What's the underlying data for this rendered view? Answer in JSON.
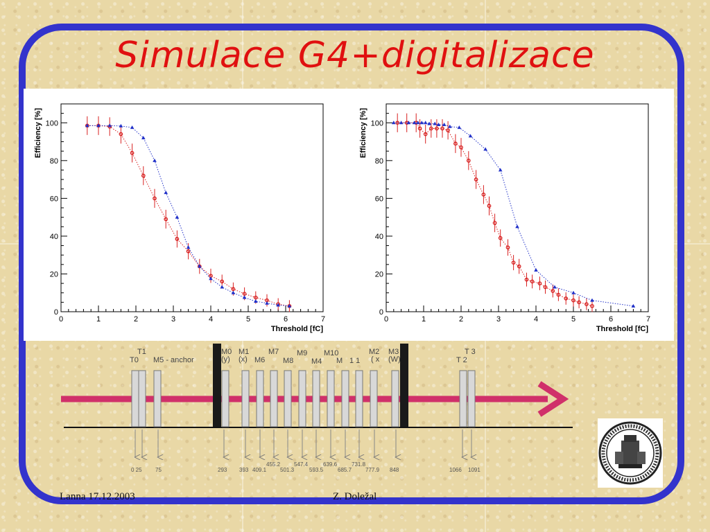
{
  "title": "Simulace G4+digitalizace",
  "footer": {
    "left": "Lanna 17.12.2003",
    "center": "Z. Doležal"
  },
  "colors": {
    "title": "#e01010",
    "frame": "#3333cc",
    "red_series": "#d82020",
    "blue_series": "#2030c8",
    "arrow": "#d0306a"
  },
  "chart_data": [
    {
      "type": "scatter",
      "xlabel": "Threshold [fC]",
      "ylabel": "Efficiency [%]",
      "xlim": [
        0,
        7
      ],
      "ylim": [
        0,
        110
      ],
      "xticks": [
        "0",
        "1",
        "2",
        "3",
        "4",
        "5",
        "6",
        "7"
      ],
      "yticks": [
        "0",
        "20",
        "40",
        "60",
        "80",
        "100"
      ],
      "series": [
        {
          "color": "red",
          "x": [
            0.7,
            1.0,
            1.3,
            1.6,
            1.9,
            2.2,
            2.5,
            2.8,
            3.1,
            3.4,
            3.7,
            4.0,
            4.3,
            4.6,
            4.9,
            5.2,
            5.5,
            5.8,
            6.1
          ],
          "y": [
            98.5,
            98.5,
            98,
            94,
            84,
            72,
            60,
            49,
            38.5,
            32,
            24,
            19,
            16,
            12,
            9.5,
            7.5,
            6,
            4,
            3
          ]
        },
        {
          "color": "blue",
          "x": [
            0.7,
            1.0,
            1.3,
            1.6,
            1.9,
            2.2,
            2.5,
            2.8,
            3.1,
            3.4,
            3.7,
            4.0,
            4.3,
            4.6,
            4.9,
            5.2,
            5.5,
            5.8,
            6.1
          ],
          "y": [
            98.5,
            98.5,
            98.5,
            98.3,
            97.5,
            92,
            80,
            63,
            50,
            34,
            24,
            17.5,
            13,
            10,
            7.5,
            5.5,
            4.5,
            3.5,
            3
          ]
        }
      ]
    },
    {
      "type": "scatter",
      "xlabel": "Threshold [fC]",
      "ylabel": "Efficiency [%]",
      "xlim": [
        0,
        7
      ],
      "ylim": [
        0,
        110
      ],
      "xticks": [
        "0",
        "1",
        "2",
        "3",
        "4",
        "5",
        "6",
        "7"
      ],
      "yticks": [
        "0",
        "20",
        "40",
        "60",
        "80",
        "100"
      ],
      "series": [
        {
          "color": "red",
          "x": [
            0.3,
            0.55,
            0.8,
            0.9,
            1.05,
            1.2,
            1.35,
            1.5,
            1.65,
            1.85,
            2.0,
            2.2,
            2.4,
            2.6,
            2.75,
            2.9,
            3.05,
            3.25,
            3.4,
            3.55,
            3.75,
            3.9,
            4.1,
            4.25,
            4.45,
            4.6,
            4.8,
            5.0,
            5.15,
            5.35,
            5.5
          ],
          "y": [
            100,
            100,
            100,
            97,
            94,
            97,
            97,
            97,
            96,
            89,
            87,
            80,
            70,
            62,
            56,
            47,
            39,
            34,
            26,
            24,
            17,
            16,
            15,
            13,
            11,
            9,
            7,
            6,
            5,
            4,
            3
          ]
        },
        {
          "color": "blue",
          "x": [
            0.2,
            0.4,
            0.6,
            0.75,
            0.85,
            0.95,
            1.05,
            1.15,
            1.3,
            1.4,
            1.55,
            1.7,
            1.95,
            2.25,
            2.65,
            3.05,
            3.5,
            4.0,
            4.5,
            5.0,
            5.5,
            6.6
          ],
          "y": [
            100,
            100,
            100,
            100,
            100,
            100,
            100,
            99.5,
            99.5,
            99,
            99,
            98,
            97.5,
            93,
            86,
            75,
            45,
            22,
            13,
            10,
            6,
            3
          ]
        }
      ]
    }
  ],
  "diagram": {
    "top_labels": [
      "T1",
      "T0",
      "M5 - anchor",
      "M0",
      "(y)",
      "M1",
      "(x)",
      "M6",
      "M7",
      "M8",
      "M9",
      "M4",
      "M10",
      "M",
      "1 1",
      "M2",
      "( x",
      "M3",
      "(W)",
      "T 3",
      "T 2"
    ],
    "positions": [
      "0 25",
      "75",
      "293",
      "393",
      "409.1",
      "455.2",
      "501.3",
      "547.4",
      "593.5",
      "639.6",
      "685.7",
      "731.8",
      "777.9",
      "848",
      "1066",
      "1091"
    ]
  }
}
